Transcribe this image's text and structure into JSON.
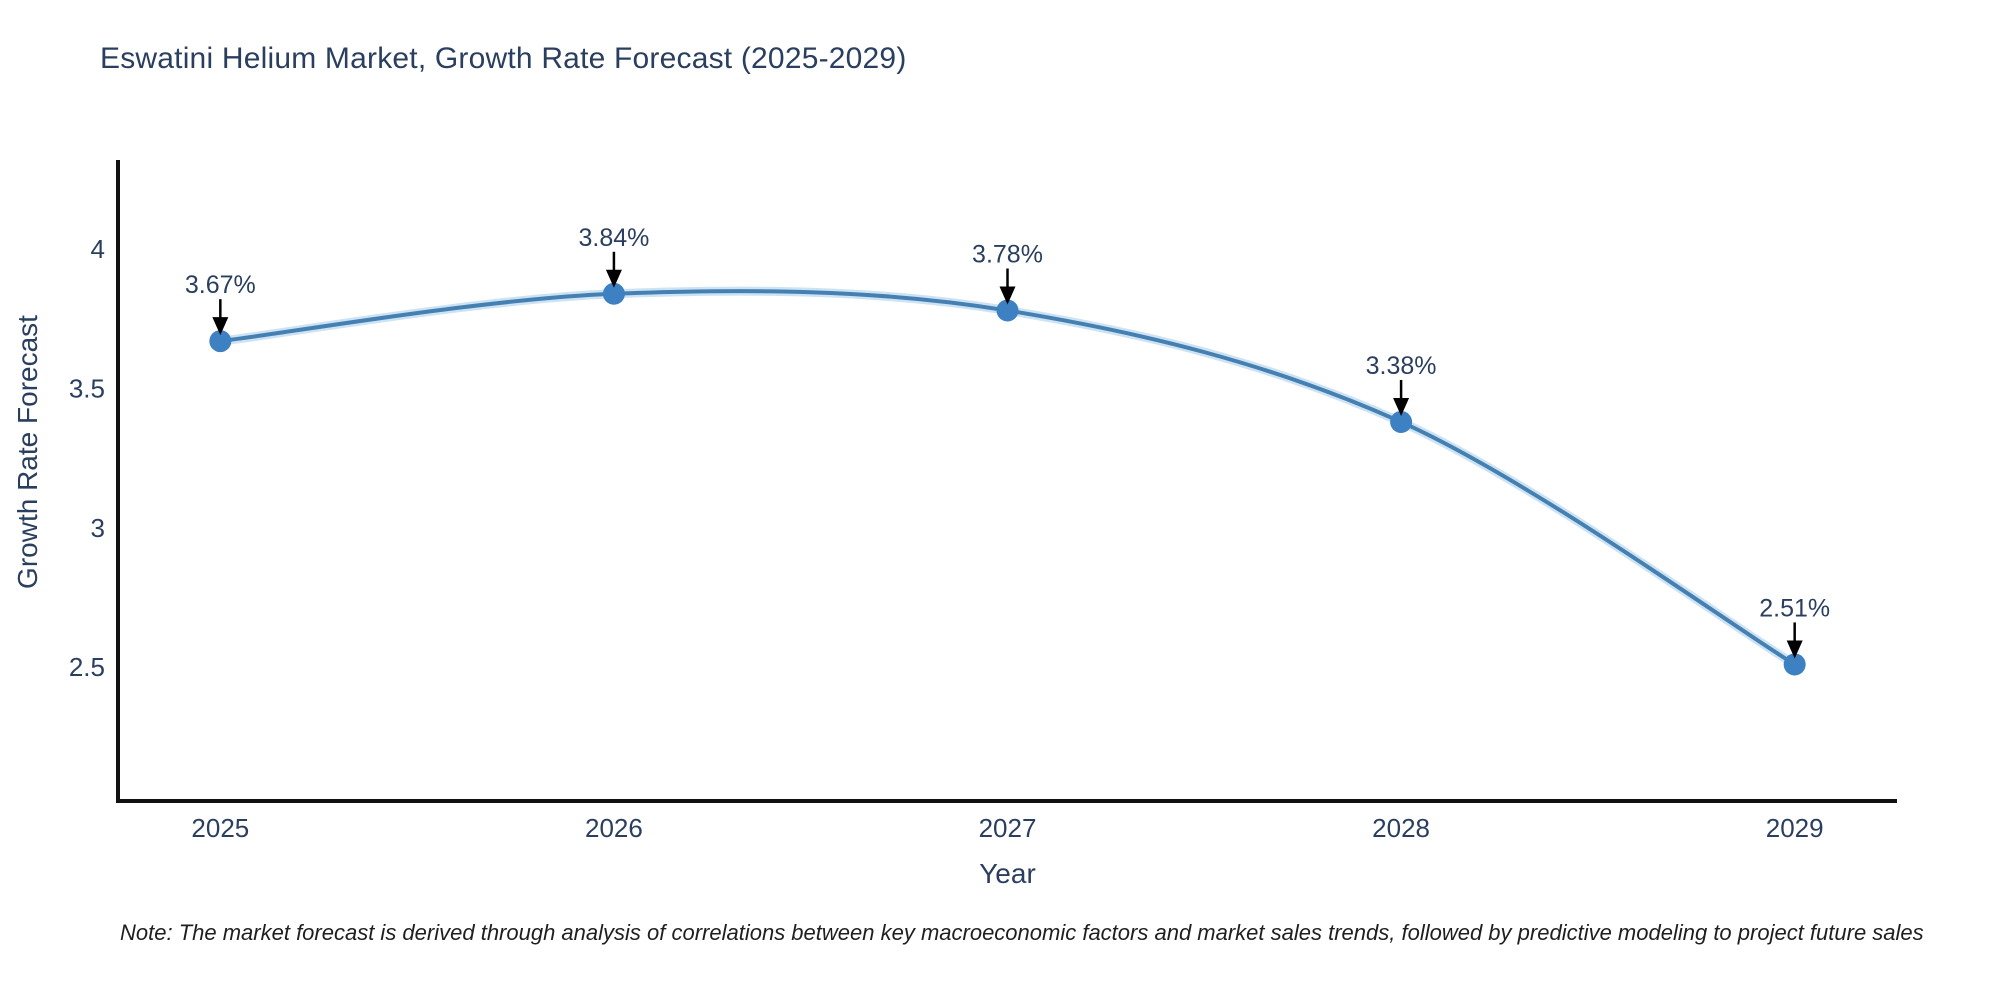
{
  "note": "Note: The market forecast is derived through analysis of correlations between key macroeconomic factors and market sales trends, followed by predictive modeling to project future sales",
  "chart_data": {
    "type": "line",
    "title": "Eswatini Helium Market, Growth Rate Forecast (2025-2029)",
    "xlabel": "Year",
    "ylabel": "Growth Rate Forecast",
    "x": [
      2025,
      2026,
      2027,
      2028,
      2029
    ],
    "x_ticks": [
      "2025",
      "2026",
      "2027",
      "2028",
      "2029"
    ],
    "series": [
      {
        "name": "Growth Rate Forecast",
        "values": [
          3.67,
          3.84,
          3.78,
          3.38,
          2.51
        ]
      }
    ],
    "point_labels": [
      "3.67%",
      "3.84%",
      "3.78%",
      "3.38%",
      "2.51%"
    ],
    "y_ticks": [
      2.5,
      3,
      3.5,
      4
    ],
    "ylim": [
      2.02,
      4.32
    ],
    "xlim": [
      2024.74,
      2029.26
    ],
    "grid": false,
    "legend": "none",
    "smooth": true,
    "colors": {
      "line": "#4480b2",
      "line_halo": "#cde3f3",
      "marker": "#3d81c3",
      "axis": "#111111",
      "text": "#2a3f5f",
      "arrow": "#000000"
    }
  }
}
